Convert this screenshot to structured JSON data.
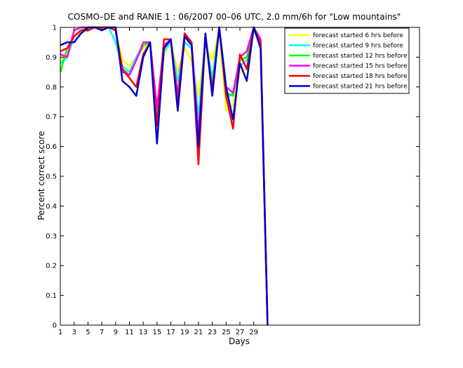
{
  "chart_data": {
    "type": "line",
    "title": "COSMO–DE and RANIE 1 : 06/2007 00–06 UTC, 2.0 mm/6h for \"Low mountains\"",
    "xlabel": "Days",
    "ylabel": "Percent correct score",
    "xlim": [
      1,
      53
    ],
    "ylim": [
      0,
      1
    ],
    "xticks": [
      1,
      3,
      5,
      7,
      9,
      11,
      13,
      15,
      17,
      19,
      21,
      23,
      25,
      27,
      29
    ],
    "yticks": [
      0,
      0.1,
      0.2,
      0.3,
      0.4,
      0.5,
      0.6,
      0.7,
      0.8,
      0.9,
      1
    ],
    "ytick_labels": [
      "0",
      "0.1",
      "0.2",
      "0.3",
      "0.4",
      "0.5",
      "0.6",
      "0.7",
      "0.8",
      "0.9",
      "1"
    ],
    "grid": false,
    "legend_position": "top-right",
    "x": [
      1,
      2,
      3,
      4,
      5,
      6,
      7,
      8,
      9,
      10,
      11,
      12,
      13,
      14,
      15,
      16,
      17,
      18,
      19,
      20,
      21,
      22,
      23,
      24,
      25,
      26,
      27,
      28,
      29,
      30,
      31
    ],
    "series": [
      {
        "name": "forecast started 6 hrs before",
        "color": "#ffff00",
        "values": [
          0.89,
          0.91,
          0.97,
          0.98,
          0.99,
          1.0,
          1.0,
          1.0,
          0.99,
          0.89,
          0.87,
          0.9,
          0.93,
          0.95,
          0.72,
          0.91,
          0.95,
          0.85,
          0.93,
          0.89,
          0.77,
          0.94,
          0.89,
          0.99,
          0.72,
          0.74,
          0.85,
          0.86,
          0.99,
          0.96,
          0.0
        ]
      },
      {
        "name": "forecast started 9 hrs before",
        "color": "#00ffff",
        "values": [
          0.88,
          0.9,
          0.97,
          0.99,
          0.99,
          1.0,
          1.0,
          1.0,
          0.95,
          0.87,
          0.85,
          0.9,
          0.94,
          0.95,
          0.72,
          0.92,
          0.95,
          0.82,
          0.95,
          0.93,
          0.7,
          0.96,
          0.83,
          1.0,
          0.76,
          0.78,
          0.87,
          0.89,
          0.99,
          0.95,
          0.0
        ]
      },
      {
        "name": "forecast started 12 hrs before",
        "color": "#00ff00",
        "values": [
          0.85,
          0.93,
          0.97,
          0.99,
          1.0,
          1.0,
          1.0,
          1.0,
          0.99,
          0.86,
          0.84,
          0.89,
          0.94,
          0.95,
          0.7,
          0.94,
          0.96,
          0.78,
          0.97,
          0.94,
          0.65,
          0.97,
          0.8,
          1.0,
          0.78,
          0.77,
          0.89,
          0.9,
          1.0,
          0.95,
          0.0
        ]
      },
      {
        "name": "forecast started 15 hrs before",
        "color": "#ff00ff",
        "values": [
          0.91,
          0.9,
          0.99,
          1.0,
          1.0,
          1.0,
          1.0,
          1.0,
          0.99,
          0.85,
          0.84,
          0.89,
          0.95,
          0.95,
          0.73,
          0.94,
          0.96,
          0.77,
          0.98,
          0.95,
          0.64,
          0.97,
          0.79,
          1.0,
          0.8,
          0.78,
          0.9,
          0.92,
          1.0,
          0.96,
          0.0
        ]
      },
      {
        "name": "forecast started 18 hrs before",
        "color": "#ff0000",
        "values": [
          0.92,
          0.93,
          0.97,
          0.99,
          0.99,
          1.0,
          1.0,
          1.0,
          0.99,
          0.86,
          0.83,
          0.8,
          0.91,
          0.95,
          0.67,
          0.96,
          0.96,
          0.74,
          0.98,
          0.95,
          0.54,
          0.97,
          0.79,
          1.0,
          0.77,
          0.66,
          0.91,
          0.86,
          1.0,
          0.95,
          0.0
        ]
      },
      {
        "name": "forecast started 21 hrs before",
        "color": "#0000cc",
        "values": [
          0.94,
          0.95,
          0.95,
          0.98,
          1.0,
          1.0,
          0.99,
          1.0,
          1.0,
          0.82,
          0.8,
          0.77,
          0.9,
          0.95,
          0.61,
          0.93,
          0.96,
          0.72,
          0.97,
          0.94,
          0.6,
          0.98,
          0.77,
          1.0,
          0.8,
          0.69,
          0.88,
          0.82,
          1.0,
          0.93,
          0.0
        ]
      }
    ]
  }
}
